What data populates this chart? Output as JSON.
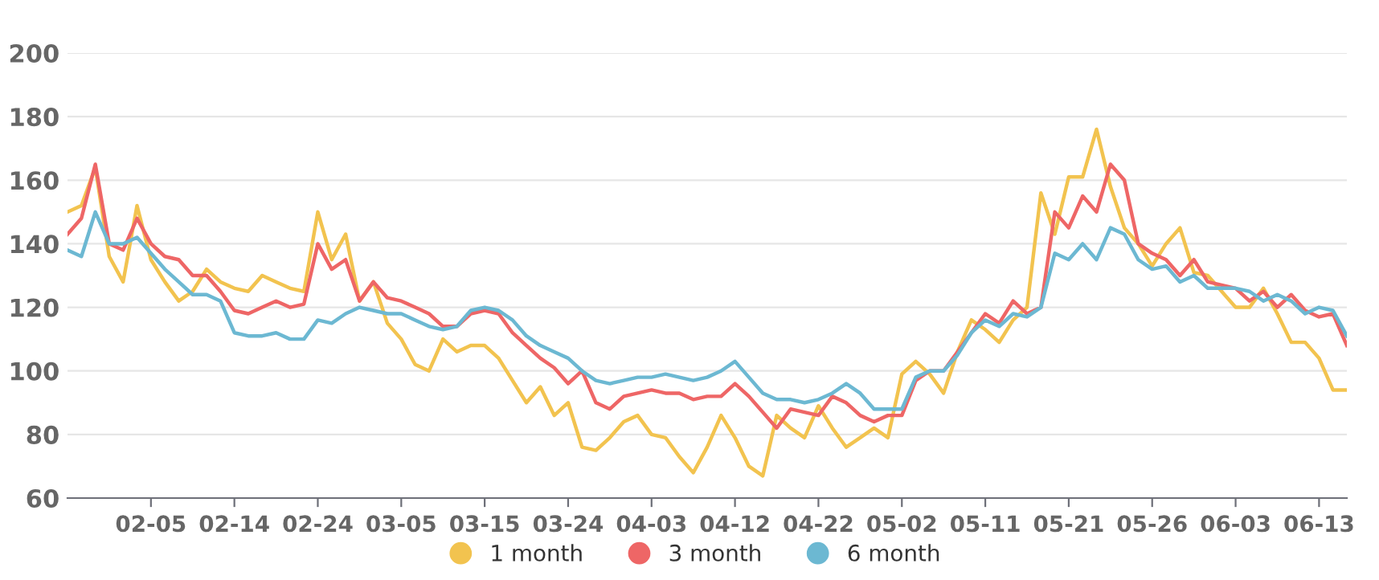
{
  "chart_data": {
    "type": "line",
    "categories": [
      null,
      null,
      null,
      null,
      null,
      null,
      "02-05",
      null,
      null,
      null,
      null,
      null,
      "02-14",
      null,
      null,
      null,
      null,
      null,
      "02-24",
      null,
      null,
      null,
      null,
      null,
      "03-05",
      null,
      null,
      null,
      null,
      null,
      "03-15",
      null,
      null,
      null,
      null,
      null,
      "03-24",
      null,
      null,
      null,
      null,
      null,
      "04-03",
      null,
      null,
      null,
      null,
      null,
      "04-12",
      null,
      null,
      null,
      null,
      null,
      "04-22",
      null,
      null,
      null,
      null,
      null,
      "05-02",
      null,
      null,
      null,
      null,
      null,
      "05-11",
      null,
      null,
      null,
      null,
      null,
      "05-21",
      null,
      null,
      null,
      null,
      null,
      "05-26",
      null,
      null,
      null,
      null,
      null,
      "06-03",
      null,
      null,
      null,
      null,
      null,
      "06-13",
      null,
      null
    ],
    "series": [
      {
        "name": "1 month",
        "color": "#f2c34f",
        "values": [
          150,
          152,
          164,
          136,
          128,
          152,
          135,
          128,
          122,
          125,
          132,
          128,
          126,
          125,
          130,
          128,
          126,
          125,
          150,
          135,
          143,
          122,
          128,
          115,
          110,
          102,
          100,
          110,
          106,
          108,
          108,
          104,
          97,
          90,
          95,
          86,
          90,
          76,
          75,
          79,
          84,
          86,
          80,
          79,
          73,
          68,
          76,
          86,
          79,
          70,
          67,
          86,
          82,
          79,
          89,
          82,
          76,
          79,
          82,
          79,
          99,
          103,
          99,
          93,
          106,
          116,
          113,
          109,
          116,
          120,
          156,
          143,
          161,
          161,
          176,
          158,
          145,
          140,
          133,
          140,
          145,
          131,
          130,
          125,
          120,
          120,
          126,
          118,
          109,
          109,
          104,
          94,
          94
        ]
      },
      {
        "name": "3 month",
        "color": "#ee6666",
        "values": [
          143,
          148,
          165,
          140,
          138,
          148,
          140,
          136,
          135,
          130,
          130,
          125,
          119,
          118,
          120,
          122,
          120,
          121,
          140,
          132,
          135,
          122,
          128,
          123,
          122,
          120,
          118,
          114,
          114,
          118,
          119,
          118,
          112,
          108,
          104,
          101,
          96,
          100,
          90,
          88,
          92,
          93,
          94,
          93,
          93,
          91,
          92,
          92,
          96,
          92,
          87,
          82,
          88,
          87,
          86,
          92,
          90,
          86,
          84,
          86,
          86,
          97,
          100,
          100,
          106,
          112,
          118,
          115,
          122,
          118,
          120,
          150,
          145,
          155,
          150,
          165,
          160,
          140,
          137,
          135,
          130,
          135,
          128,
          127,
          126,
          122,
          125,
          120,
          124,
          119,
          117,
          118,
          108
        ]
      },
      {
        "name": "6 month",
        "color": "#6cb8d2",
        "values": [
          138,
          136,
          150,
          140,
          140,
          142,
          137,
          132,
          128,
          124,
          124,
          122,
          112,
          111,
          111,
          112,
          110,
          110,
          116,
          115,
          118,
          120,
          119,
          118,
          118,
          116,
          114,
          113,
          114,
          119,
          120,
          119,
          116,
          111,
          108,
          106,
          104,
          100,
          97,
          96,
          97,
          98,
          98,
          99,
          98,
          97,
          98,
          100,
          103,
          98,
          93,
          91,
          91,
          90,
          91,
          93,
          96,
          93,
          88,
          88,
          88,
          98,
          100,
          100,
          105,
          112,
          116,
          114,
          118,
          117,
          120,
          137,
          135,
          140,
          135,
          145,
          143,
          135,
          132,
          133,
          128,
          130,
          126,
          126,
          126,
          125,
          122,
          124,
          122,
          118,
          120,
          119,
          111
        ]
      }
    ],
    "ylim": [
      60,
      200
    ],
    "yticks": [
      60,
      80,
      100,
      120,
      140,
      160,
      180,
      200
    ],
    "grid": "y",
    "legend": "bottom",
    "marker": "none",
    "line_style": "solid"
  }
}
